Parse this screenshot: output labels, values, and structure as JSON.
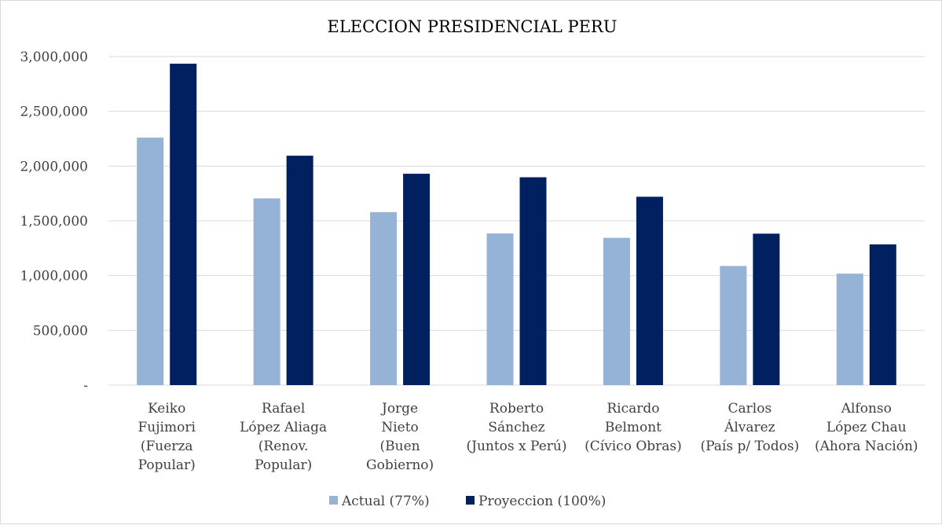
{
  "chart_data": {
    "type": "bar",
    "title": "ELECCION PRESIDENCIAL PERU",
    "xlabel": "",
    "ylabel": "",
    "ylim": [
      0,
      3000000
    ],
    "yticks": [
      0,
      500000,
      1000000,
      1500000,
      2000000,
      2500000,
      3000000
    ],
    "ytick_labels": [
      "-",
      "500,000",
      "1,000,000",
      "1,500,000",
      "2,000,000",
      "2,500,000",
      "3,000,000"
    ],
    "grid": true,
    "legend_position": "bottom",
    "categories": [
      [
        "Keiko",
        "Fujimori",
        "(Fuerza",
        "Popular)"
      ],
      [
        "Rafael",
        "López Aliaga",
        "(Renov.",
        "Popular)"
      ],
      [
        "Jorge",
        "Nieto",
        "(Buen",
        "Gobierno)"
      ],
      [
        "Roberto",
        "Sánchez",
        "(Juntos x Perú)"
      ],
      [
        "Ricardo",
        "Belmont",
        "(Cívico Obras)"
      ],
      [
        "Carlos",
        "Álvarez",
        "(País p/ Todos)"
      ],
      [
        "Alfonso",
        "López Chau",
        "(Ahora Nación)"
      ]
    ],
    "series": [
      {
        "name": "Actual (77%)",
        "color": "#95b3d7",
        "values": [
          2260000,
          1705000,
          1580000,
          1385000,
          1345000,
          1088000,
          1018000
        ]
      },
      {
        "name": "Proyeccion (100%)",
        "color": "#002060",
        "values": [
          2935000,
          2095000,
          1930000,
          1898000,
          1720000,
          1383000,
          1285000
        ]
      }
    ]
  }
}
